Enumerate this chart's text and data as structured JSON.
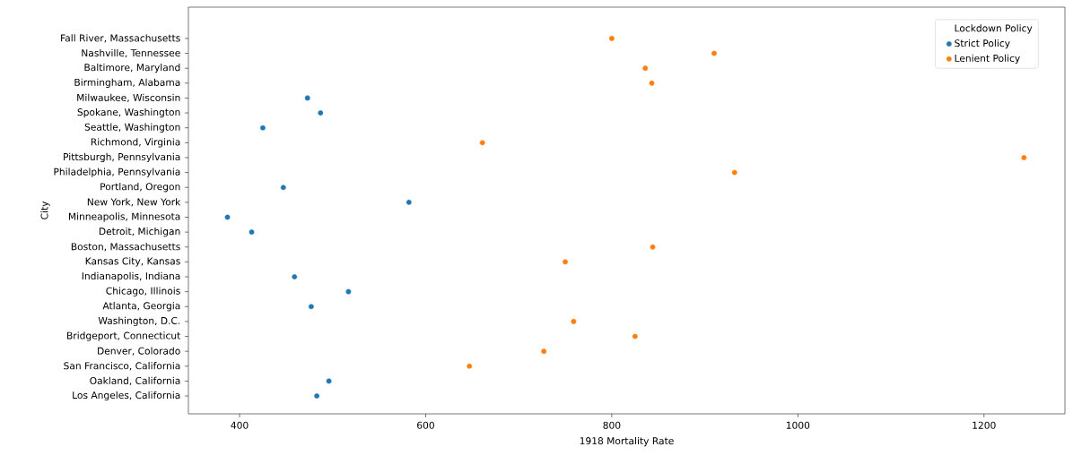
{
  "chart_data": {
    "type": "scatter",
    "orientation": "horizontal",
    "xlabel": "1918 Mortality Rate",
    "ylabel": "City",
    "legend_title": "Lockdown Policy",
    "legend": "top right",
    "marker": "circle",
    "categories": [
      "Fall River, Massachusetts",
      "Nashville, Tennessee",
      "Baltimore, Maryland",
      "Birmingham, Alabama",
      "Milwaukee, Wisconsin",
      "Spokane, Washington",
      "Seattle, Washington",
      "Richmond, Virginia",
      "Pittsburgh, Pennsylvania",
      "Philadelphia, Pennsylvania",
      "Portland, Oregon",
      "New York, New York",
      "Minneapolis, Minnesota",
      "Detroit, Michigan",
      "Boston, Massachusetts",
      "Kansas City, Kansas",
      "Indianapolis, Indiana",
      "Chicago, Illinois",
      "Atlanta, Georgia",
      "Washington, D.C.",
      "Bridgeport, Connecticut",
      "Denver, Colorado",
      "San Francisco, California",
      "Oakland, California",
      "Los Angeles, California"
    ],
    "series": [
      {
        "name": "Strict Policy",
        "color": "#1f77b4",
        "values": [
          null,
          null,
          null,
          null,
          473,
          487,
          425,
          null,
          null,
          null,
          447,
          582,
          387,
          413,
          null,
          null,
          459,
          517,
          477,
          null,
          null,
          null,
          null,
          496,
          483
        ]
      },
      {
        "name": "Lenient Policy",
        "color": "#ff7f0e",
        "values": [
          800,
          910,
          836,
          843,
          null,
          null,
          null,
          661,
          1243,
          932,
          null,
          null,
          null,
          null,
          844,
          750,
          null,
          null,
          null,
          759,
          825,
          727,
          647,
          null,
          null
        ]
      }
    ],
    "xlim": [
      345,
      1287
    ],
    "xticks": [
      400,
      600,
      800,
      1000,
      1200
    ]
  }
}
